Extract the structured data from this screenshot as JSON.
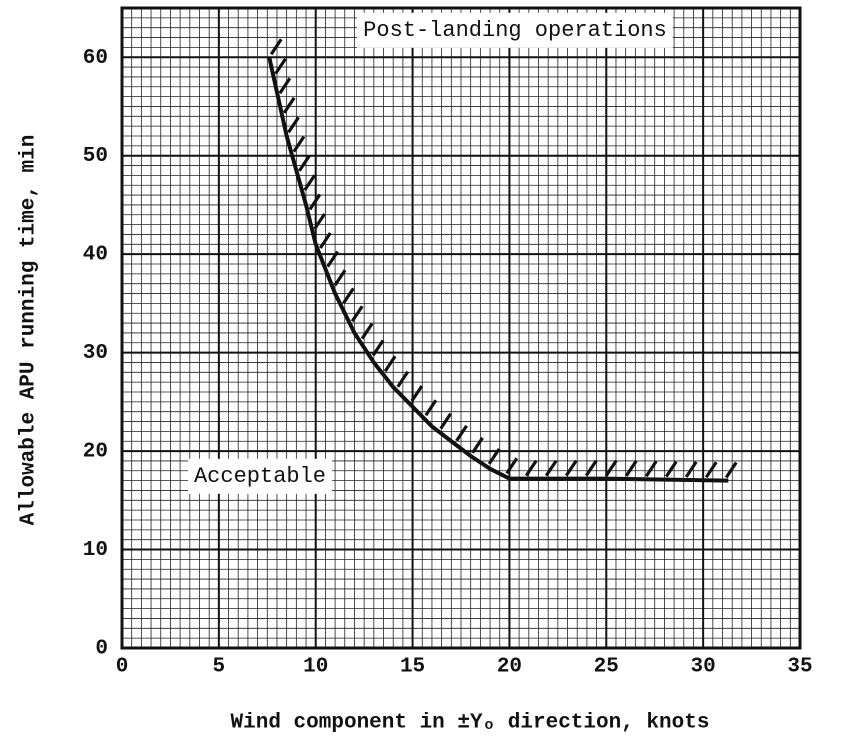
{
  "chart_data": {
    "type": "line",
    "x_label": "Wind component in ±Yₒ direction, knots",
    "y_label": "Allowable APU running time, min",
    "annotations": [
      "Post-landing operations",
      "Acceptable"
    ],
    "series": [
      {
        "color": "#111111",
        "x": [
          7.6,
          8.5,
          9.5,
          10,
          11,
          12,
          13,
          14,
          15,
          16,
          17,
          18,
          19,
          20,
          25,
          31.3
        ],
        "values": [
          60,
          52,
          45,
          41,
          36,
          32,
          29,
          26.5,
          24.5,
          22.5,
          21,
          19.5,
          18.2,
          17.2,
          17.2,
          17
        ]
      }
    ],
    "xlim": [
      0,
      35
    ],
    "xticks": [
      0,
      5,
      10,
      15,
      20,
      25,
      30,
      35
    ],
    "ylim": [
      0,
      65
    ],
    "yticks": [
      0,
      10,
      20,
      30,
      40,
      50,
      60
    ],
    "grid": true
  }
}
